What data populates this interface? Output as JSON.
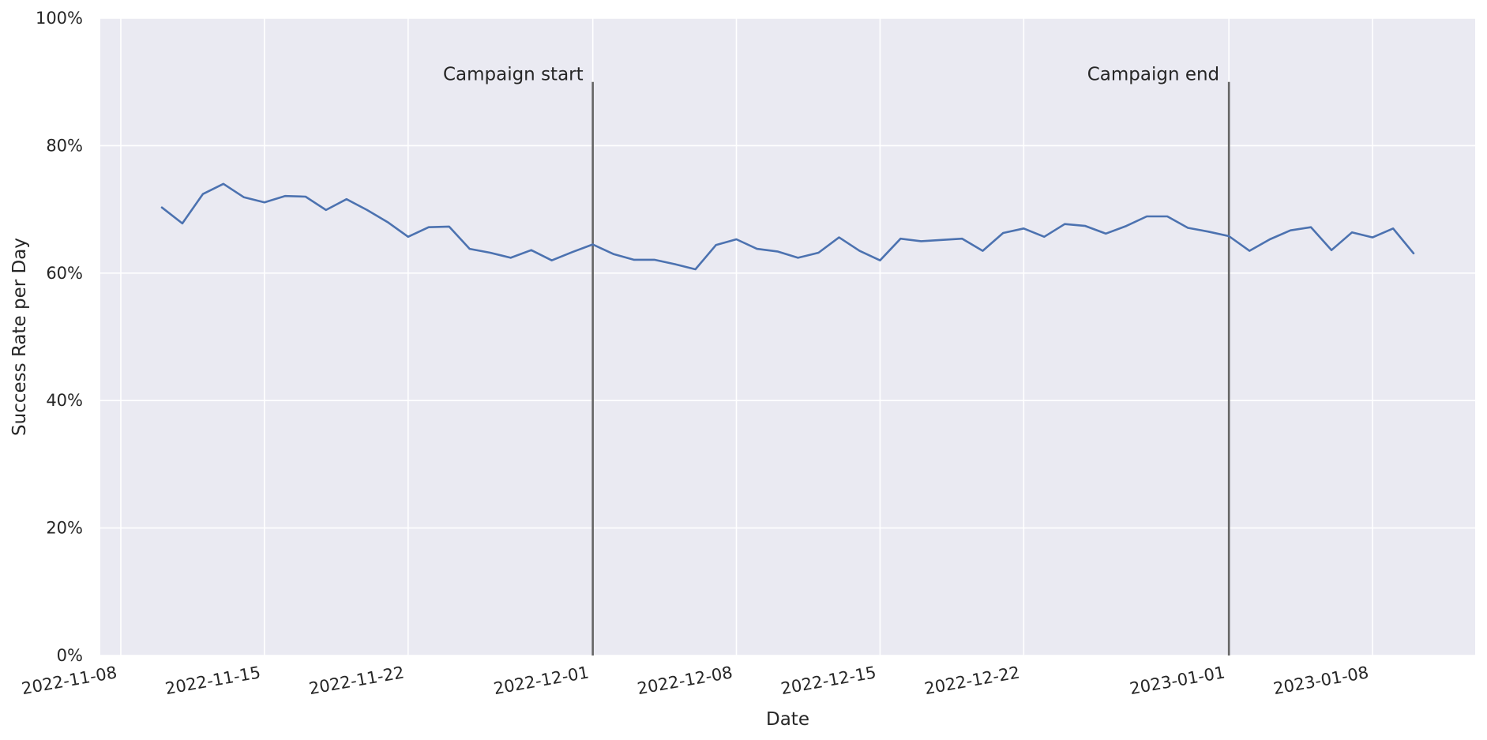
{
  "chart_data": {
    "type": "line",
    "title": "",
    "xlabel": "Date",
    "ylabel": "Success Rate per Day",
    "x_tick_labels": [
      "2022-11-08",
      "2022-11-15",
      "2022-11-22",
      "2022-12-01",
      "2022-12-08",
      "2022-12-15",
      "2022-12-22",
      "2023-01-01",
      "2023-01-08"
    ],
    "x_ticks": [
      "2022-11-08",
      "2022-11-15",
      "2022-11-22",
      "2022-12-01",
      "2022-12-08",
      "2022-12-15",
      "2022-12-22",
      "2023-01-01",
      "2023-01-08"
    ],
    "y_tick_labels": [
      "0%",
      "20%",
      "40%",
      "60%",
      "80%",
      "100%"
    ],
    "y_ticks": [
      0,
      0.2,
      0.4,
      0.6,
      0.8,
      1.0
    ],
    "ylim": [
      0,
      1.0
    ],
    "xlim": [
      "2022-11-07",
      "2023-01-13"
    ],
    "grid": true,
    "background_color": "#eaeaf2",
    "grid_color": "#ffffff",
    "annotations": [
      {
        "label": "Campaign start",
        "date": "2022-12-01",
        "y_top": 0.9,
        "color": "#666666"
      },
      {
        "label": "Campaign end",
        "date": "2023-01-01",
        "y_top": 0.9,
        "color": "#666666"
      }
    ],
    "series": [
      {
        "color": "#4c72b0",
        "x": [
          "2022-11-10",
          "2022-11-11",
          "2022-11-12",
          "2022-11-13",
          "2022-11-14",
          "2022-11-15",
          "2022-11-16",
          "2022-11-17",
          "2022-11-18",
          "2022-11-19",
          "2022-11-20",
          "2022-11-21",
          "2022-11-22",
          "2022-11-23",
          "2022-11-24",
          "2022-11-25",
          "2022-11-26",
          "2022-11-27",
          "2022-11-28",
          "2022-11-29",
          "2022-11-30",
          "2022-12-01",
          "2022-12-02",
          "2022-12-03",
          "2022-12-04",
          "2022-12-05",
          "2022-12-06",
          "2022-12-07",
          "2022-12-08",
          "2022-12-09",
          "2022-12-10",
          "2022-12-11",
          "2022-12-12",
          "2022-12-13",
          "2022-12-14",
          "2022-12-15",
          "2022-12-16",
          "2022-12-17",
          "2022-12-18",
          "2022-12-19",
          "2022-12-20",
          "2022-12-21",
          "2022-12-22",
          "2022-12-23",
          "2022-12-24",
          "2022-12-25",
          "2022-12-26",
          "2022-12-27",
          "2022-12-28",
          "2022-12-29",
          "2022-12-30",
          "2022-12-31",
          "2023-01-01",
          "2023-01-02",
          "2023-01-03",
          "2023-01-04",
          "2023-01-05",
          "2023-01-06",
          "2023-01-07",
          "2023-01-08",
          "2023-01-09",
          "2023-01-10"
        ],
        "values": [
          0.703,
          0.678,
          0.724,
          0.74,
          0.719,
          0.711,
          0.721,
          0.72,
          0.699,
          0.716,
          0.699,
          0.68,
          0.657,
          0.672,
          0.673,
          0.638,
          0.632,
          0.624,
          0.636,
          0.62,
          0.633,
          0.645,
          0.63,
          0.621,
          0.621,
          0.614,
          0.606,
          0.644,
          0.653,
          0.638,
          0.634,
          0.624,
          0.632,
          0.656,
          0.635,
          0.62,
          0.654,
          0.65,
          0.652,
          0.654,
          0.635,
          0.663,
          0.67,
          0.657,
          0.677,
          0.674,
          0.662,
          0.674,
          0.689,
          0.689,
          0.671,
          0.665,
          0.658,
          0.635,
          0.653,
          0.667,
          0.672,
          0.636,
          0.664,
          0.656,
          0.67,
          0.631
        ]
      }
    ]
  }
}
